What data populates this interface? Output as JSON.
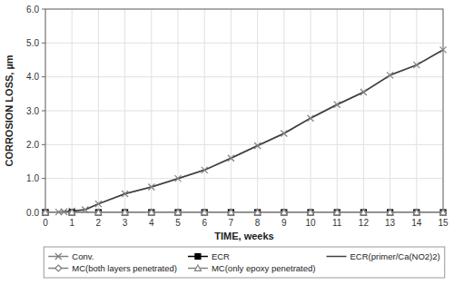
{
  "chart_data": {
    "type": "line",
    "xlabel": "TIME, weeks",
    "ylabel": "CORROSION LOSS, µm",
    "xlim": [
      0,
      15
    ],
    "ylim": [
      0.0,
      6.0
    ],
    "xticks": [
      0,
      1,
      2,
      3,
      4,
      5,
      6,
      7,
      8,
      9,
      10,
      11,
      12,
      13,
      14,
      15
    ],
    "yticks": [
      {
        "value": 0.0,
        "label": "0.0"
      },
      {
        "value": 1.0,
        "label": "1.0"
      },
      {
        "value": 2.0,
        "label": "2.0"
      },
      {
        "value": 3.0,
        "label": "3.0"
      },
      {
        "value": 4.0,
        "label": "4.0"
      },
      {
        "value": 5.0,
        "label": "5.0"
      },
      {
        "value": 6.0,
        "label": "6.0"
      }
    ],
    "grid": true,
    "legend": "bottom",
    "series": [
      {
        "name": "Conv.",
        "color": "#808080",
        "marker": "x",
        "x": [
          0,
          0.5,
          0.7,
          1.0,
          1.5,
          2,
          3,
          4,
          5,
          6,
          7,
          8,
          9,
          10,
          11,
          12,
          13,
          14,
          15
        ],
        "values": [
          0,
          0.01,
          0.02,
          0.04,
          0.08,
          0.25,
          0.55,
          0.75,
          1.0,
          1.25,
          1.6,
          1.97,
          2.33,
          2.78,
          3.18,
          3.55,
          4.05,
          4.35,
          4.8
        ]
      },
      {
        "name": "ECR",
        "color": "#000000",
        "marker": "square",
        "x": [
          0,
          1,
          2,
          3,
          4,
          5,
          6,
          7,
          8,
          9,
          10,
          11,
          12,
          13,
          14,
          15
        ],
        "values": [
          0,
          0.0,
          0.0,
          0.0,
          0.0,
          0.0,
          0.0,
          0.0,
          0.0,
          0.0,
          0.0,
          0.0,
          0.0,
          0.0,
          0.0,
          0.0
        ]
      },
      {
        "name": "ECR(primer/Ca(NO2)2)",
        "color": "#404040",
        "marker": "none",
        "x": [
          0,
          0.5,
          0.7,
          1.0,
          1.5,
          2,
          3,
          4,
          5,
          6,
          7,
          8,
          9,
          10,
          11,
          12,
          13,
          14,
          15
        ],
        "values": [
          0,
          0.01,
          0.02,
          0.04,
          0.08,
          0.25,
          0.55,
          0.75,
          1.0,
          1.25,
          1.6,
          1.97,
          2.33,
          2.78,
          3.18,
          3.55,
          4.05,
          4.35,
          4.8
        ]
      },
      {
        "name": "MC(both layers penetrated)",
        "color": "#808080",
        "marker": "diamond",
        "x": [
          0,
          1,
          2,
          3,
          4,
          5,
          6,
          7,
          8,
          9,
          10,
          11,
          12,
          13,
          14,
          15
        ],
        "values": [
          0,
          0.0,
          0.0,
          0.0,
          0.0,
          0.0,
          0.0,
          0.0,
          0.0,
          0.0,
          0.0,
          0.0,
          0.0,
          0.0,
          0.0,
          0.0
        ]
      },
      {
        "name": "MC(only epoxy penetrated)",
        "color": "#808080",
        "marker": "triangle",
        "x": [
          0,
          1,
          2,
          3,
          4,
          5,
          6,
          7,
          8,
          9,
          10,
          11,
          12,
          13,
          14,
          15
        ],
        "values": [
          0,
          0.0,
          0.0,
          0.0,
          0.0,
          0.0,
          0.0,
          0.0,
          0.0,
          0.0,
          0.0,
          0.0,
          0.0,
          0.0,
          0.0,
          0.0
        ]
      }
    ]
  }
}
